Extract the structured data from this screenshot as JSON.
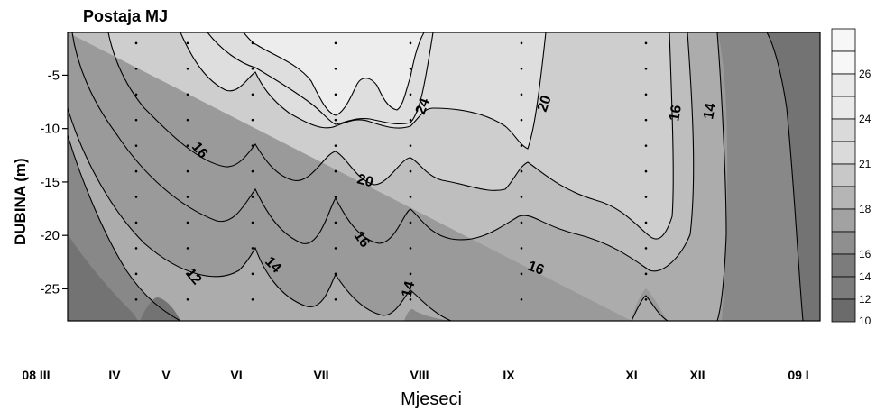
{
  "chart_data": {
    "type": "heatmap",
    "title": "Postaja MJ",
    "xlabel": "Mjeseci",
    "ylabel": "DUBINA (m)",
    "x_categories": [
      "08 III",
      "IV",
      "V",
      "VI",
      "VII",
      "VIII",
      "IX",
      "XI",
      "XII",
      "09 I"
    ],
    "y_ticks": [
      -5,
      -10,
      -15,
      -20,
      -25
    ],
    "ylim": [
      -28,
      -1
    ],
    "legend_levels": [
      10,
      12,
      14,
      16,
      18,
      21,
      24,
      26
    ],
    "contour_labels": [
      "24",
      "20",
      "16",
      "16",
      "20",
      "16",
      "16",
      "14",
      "14",
      "14",
      "12",
      "16"
    ],
    "colors": {
      "lt10": "#6b6b6b",
      "l10_12": "#7c7c7c",
      "l12_14": "#8f8f8f",
      "l14_16": "#a2a2a2",
      "l16_18": "#b5b5b5",
      "l18_21": "#c8c8c8",
      "l21_24": "#dadada",
      "l24_26": "#eaeaea",
      "gt26": "#f7f7f7"
    },
    "legend": {
      "position": "right",
      "type": "colorbar"
    },
    "grid": false
  }
}
